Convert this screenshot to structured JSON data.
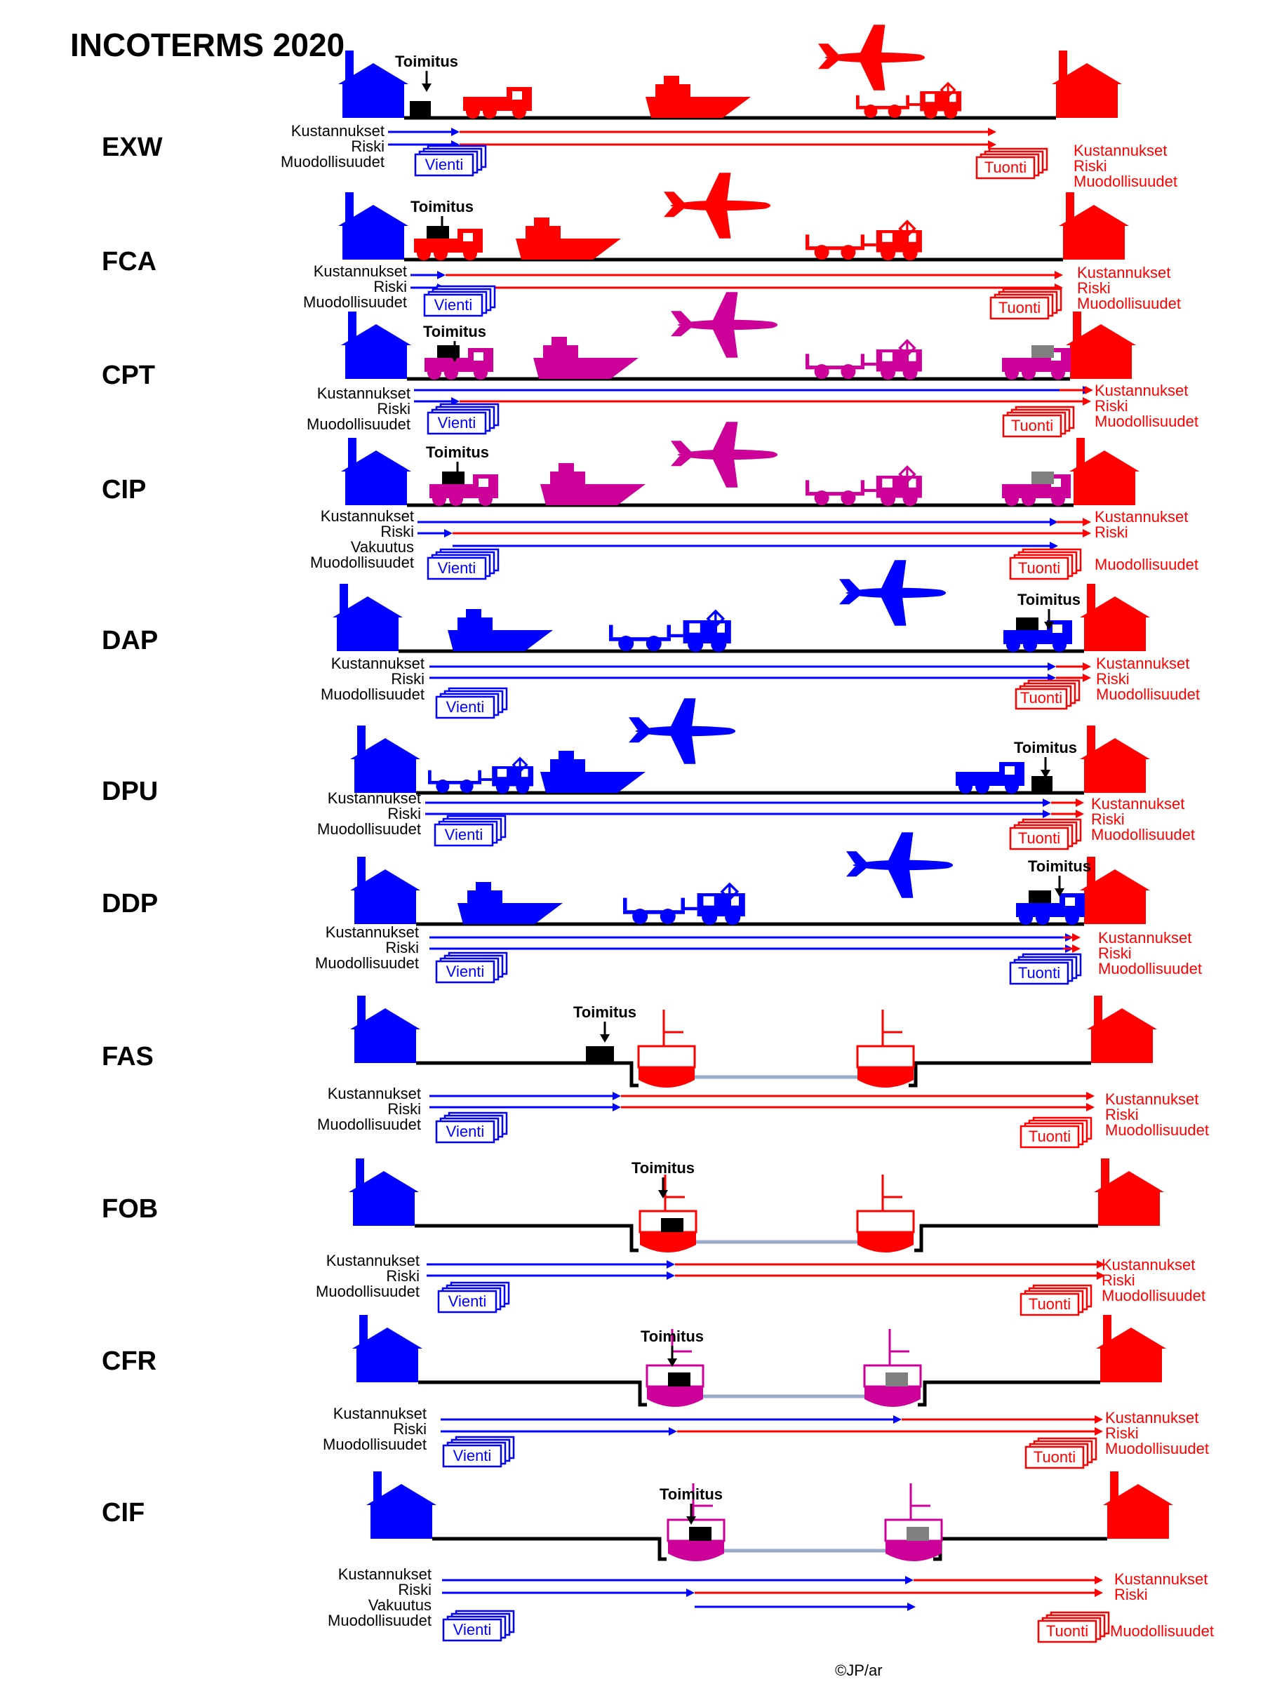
{
  "title": "INCOTERMS 2020",
  "signature": "©JP/ar",
  "labels": {
    "delivery": "Toimitus",
    "costs": "Kustannukset",
    "risk": "Riski",
    "insurance": "Vakuutus",
    "formalities": "Muodollisuudet",
    "export": "Vienti",
    "import": "Tuonti"
  },
  "colors": {
    "seller": "#0000ff",
    "buyer": "#ff0000",
    "carriage_paid": "#cc0099",
    "ground": "#000000",
    "water": "#99aacc",
    "cargo_buyer": "#808080"
  },
  "terms": [
    {
      "code": "EXW"
    },
    {
      "code": "FCA"
    },
    {
      "code": "CPT"
    },
    {
      "code": "CIP"
    },
    {
      "code": "DAP"
    },
    {
      "code": "DPU"
    },
    {
      "code": "DDP"
    },
    {
      "code": "FAS"
    },
    {
      "code": "FOB"
    },
    {
      "code": "CFR"
    },
    {
      "code": "CIF"
    }
  ]
}
